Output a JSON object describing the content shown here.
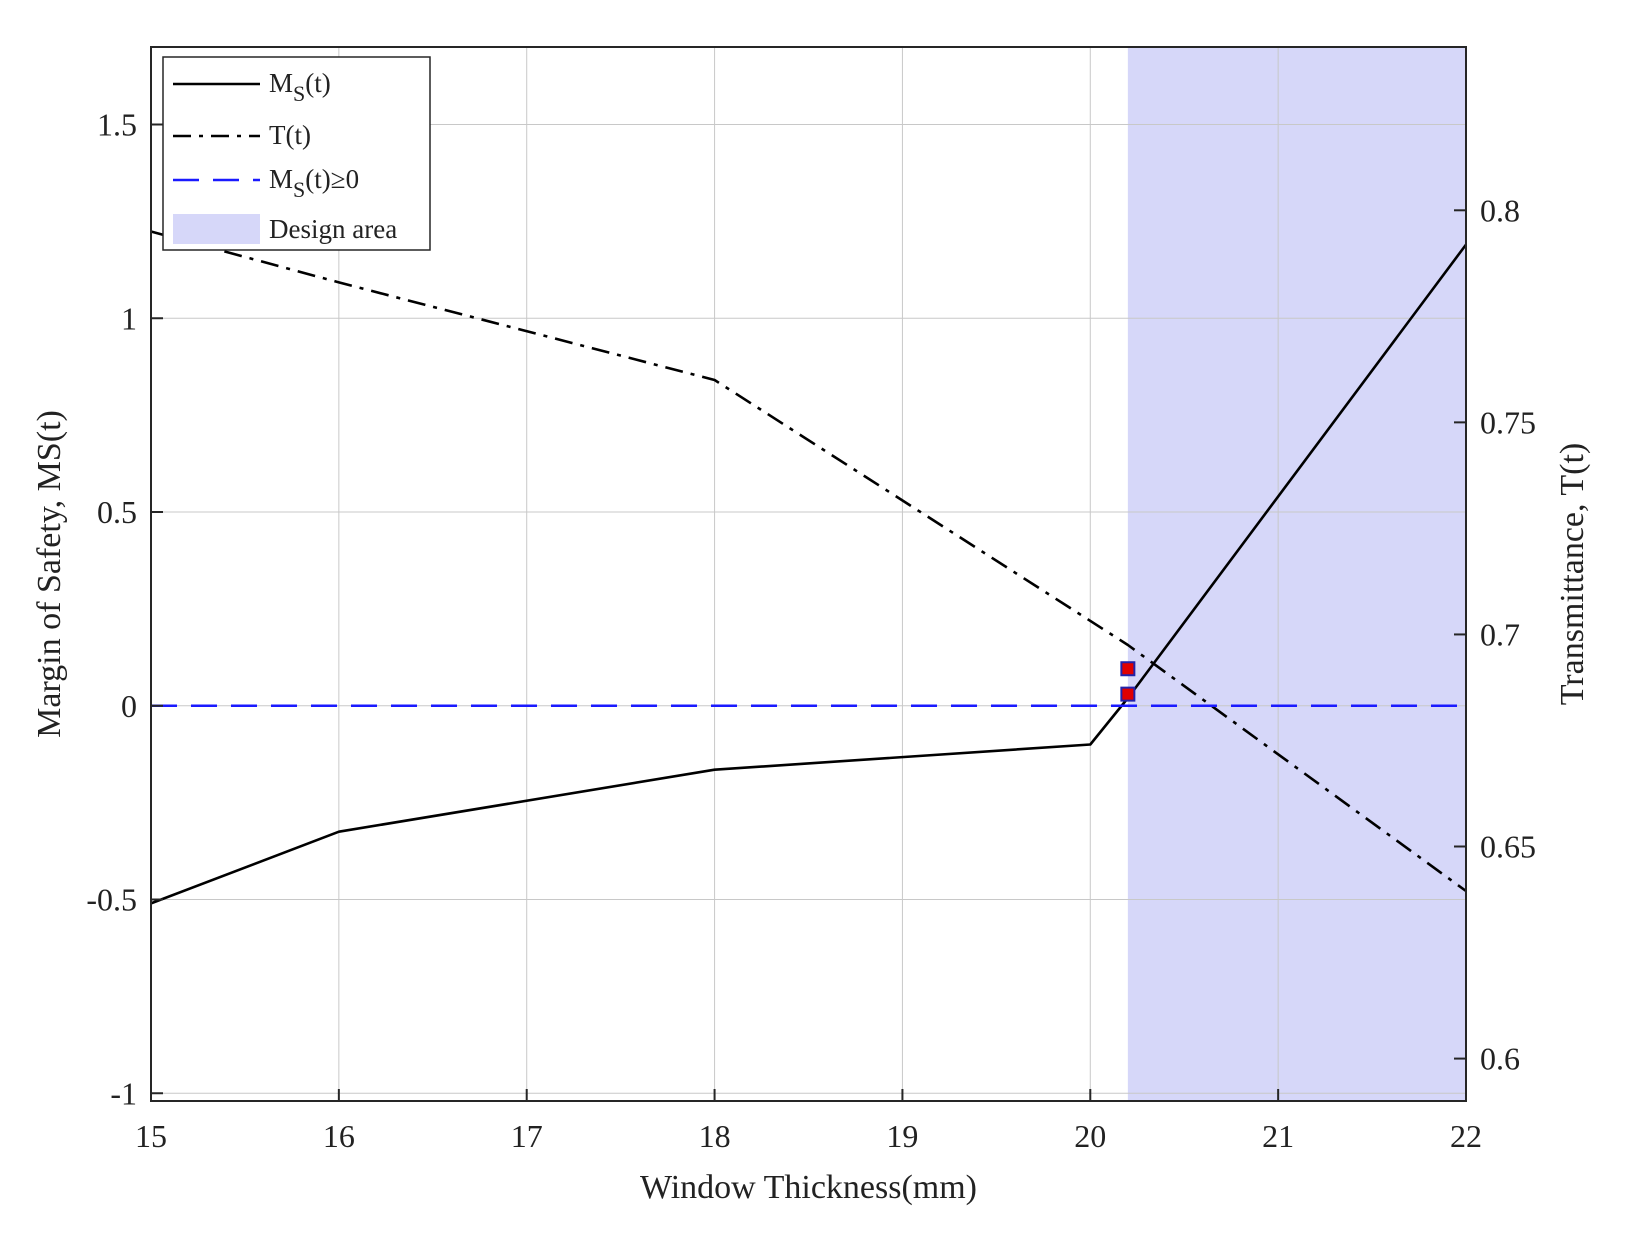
{
  "chart_data": {
    "type": "line",
    "xlabel": "Window Thickness(mm)",
    "ylabel_left": "Margin of Safety, MS(t)",
    "ylabel_right": "Transmittance, T(t)",
    "xlim": [
      15,
      22
    ],
    "ylim_left": [
      -1.02,
      1.7
    ],
    "ylim_right": [
      0.59,
      0.8385
    ],
    "x_ticks": [
      15,
      16,
      17,
      18,
      19,
      20,
      21,
      22
    ],
    "x_tick_labels": [
      "15",
      "16",
      "17",
      "18",
      "19",
      "20",
      "21",
      "22"
    ],
    "y_left_ticks": [
      -1,
      -0.5,
      0,
      0.5,
      1,
      1.5
    ],
    "y_left_tick_labels": [
      "-1",
      "-0.5",
      "0",
      "0.5",
      "1",
      "1.5"
    ],
    "y_right_ticks": [
      0.6,
      0.65,
      0.7,
      0.75,
      0.8
    ],
    "y_right_tick_labels": [
      "0.6",
      "0.65",
      "0.7",
      "0.75",
      "0.8"
    ],
    "grid": true,
    "legend_position": "top-left",
    "series": [
      {
        "name": "MS(t)",
        "axis": "left",
        "style": "solid",
        "color": "#000000",
        "x": [
          15,
          16,
          18,
          20,
          20.2,
          22
        ],
        "y": [
          -0.51,
          -0.325,
          -0.165,
          -0.1,
          0.02,
          1.19
        ]
      },
      {
        "name": "T(t)",
        "axis": "right",
        "style": "dashdot",
        "color": "#000000",
        "x": [
          15,
          16,
          18,
          20.2,
          22
        ],
        "y": [
          0.795,
          0.783,
          0.76,
          0.6975,
          0.6395
        ]
      },
      {
        "name": "MS(t)≥0",
        "axis": "left",
        "style": "dashed",
        "color": "#1a1aff",
        "x": [
          15,
          22
        ],
        "y": [
          0,
          0
        ]
      }
    ],
    "design_area": {
      "name": "Design area",
      "x_start": 20.2,
      "x_end": 22,
      "color": "#d6d7f9"
    },
    "markers": [
      {
        "x": 20.2,
        "y": 0.03,
        "axis": "left",
        "color": "#e00000",
        "edge": "#2222aa"
      },
      {
        "x": 20.2,
        "y": 0.0955,
        "axis": "left",
        "color": "#e00000",
        "edge": "#2222aa"
      }
    ],
    "legend": [
      {
        "base": "M",
        "sub": "S",
        "rest": "(t)",
        "style": "solid"
      },
      {
        "base": "T(t)",
        "sub": "",
        "rest": "",
        "style": "dashdot"
      },
      {
        "base": "M",
        "sub": "S",
        "rest": "(t)≥0",
        "style": "dashed"
      },
      {
        "base": "Design area",
        "sub": "",
        "rest": "",
        "style": "patch"
      }
    ]
  }
}
